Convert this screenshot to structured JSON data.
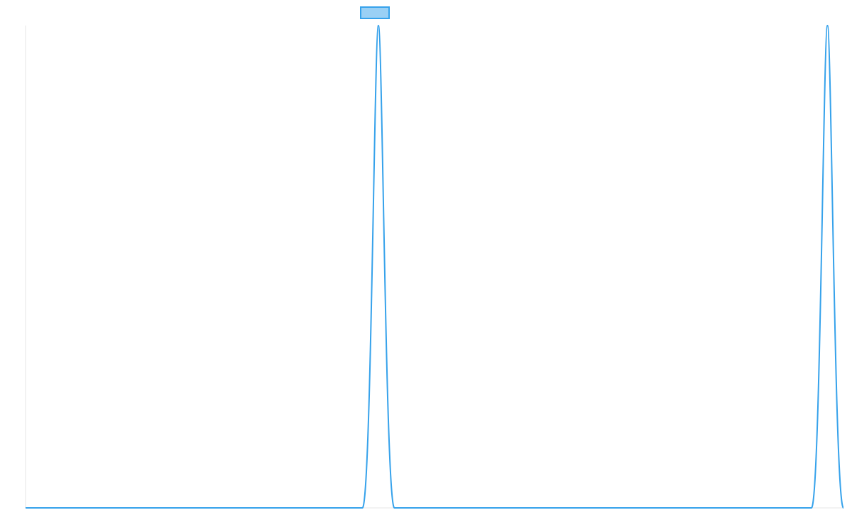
{
  "chart_data": {
    "type": "line",
    "title": "",
    "xlabel": "",
    "ylabel": "",
    "grid": false,
    "legend": {
      "placement": "top-center",
      "entries": [
        {
          "label": "",
          "color": "#36a2eb",
          "fill": "#9ad0f5"
        }
      ]
    },
    "xlim": [
      0,
      1
    ],
    "ylim": [
      0,
      1
    ],
    "series": [
      {
        "color": "#36a2eb",
        "x": [
          0,
          0.4118,
          0.4314,
          0.451,
          0.9608,
          0.9804,
          1
        ],
        "y": [
          0,
          0,
          1,
          0,
          0,
          1,
          0
        ]
      }
    ]
  },
  "colors": {
    "line": "#36a2eb",
    "legend_fill": "#9ad0f5",
    "axis": "#e6e6e6"
  }
}
